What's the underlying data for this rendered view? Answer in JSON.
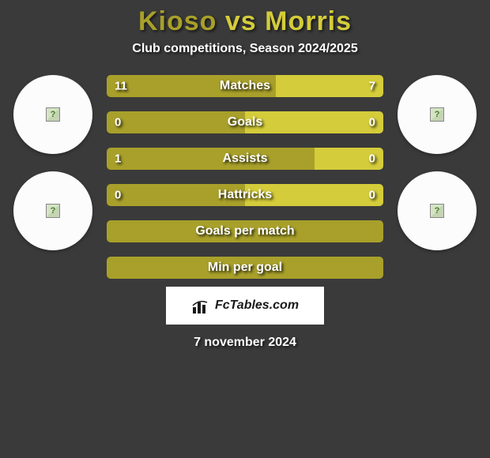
{
  "title": {
    "player1": "Kioso",
    "vs": "vs",
    "player2": "Morris",
    "player1_color": "#a8a02a",
    "player2_color": "#d4cc3a"
  },
  "subtitle": "Club competitions, Season 2024/2025",
  "bars": [
    {
      "label": "Matches",
      "left_val": "11",
      "right_val": "7",
      "left_pct": 61,
      "right_pct": 39,
      "left_color": "#a8a02a",
      "right_color": "#d4cc3a"
    },
    {
      "label": "Goals",
      "left_val": "0",
      "right_val": "0",
      "left_pct": 50,
      "right_pct": 50,
      "left_color": "#a8a02a",
      "right_color": "#d4cc3a"
    },
    {
      "label": "Assists",
      "left_val": "1",
      "right_val": "0",
      "left_pct": 75,
      "right_pct": 25,
      "left_color": "#a8a02a",
      "right_color": "#d4cc3a"
    },
    {
      "label": "Hattricks",
      "left_val": "0",
      "right_val": "0",
      "left_pct": 50,
      "right_pct": 50,
      "left_color": "#a8a02a",
      "right_color": "#d4cc3a"
    },
    {
      "label": "Goals per match",
      "left_val": "",
      "right_val": "",
      "left_pct": 100,
      "right_pct": 0,
      "left_color": "#a8a02a",
      "right_color": "#d4cc3a"
    },
    {
      "label": "Min per goal",
      "left_val": "",
      "right_val": "",
      "left_pct": 100,
      "right_pct": 0,
      "left_color": "#a8a02a",
      "right_color": "#d4cc3a"
    }
  ],
  "logo_text": "FcTables.com",
  "date": "7 november 2024",
  "background_color": "#3a3a3a",
  "circle_bg": "#fcfcfc",
  "text_color": "#ffffff"
}
